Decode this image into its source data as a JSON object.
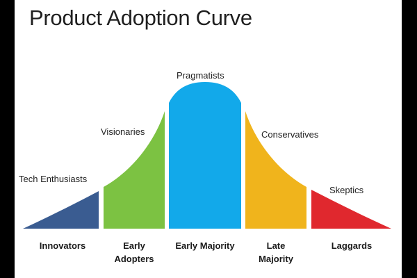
{
  "title": "Product Adoption Curve",
  "colors": {
    "innovators": "#3a5c91",
    "early_adopters": "#7cc242",
    "early_majority": "#12a9ea",
    "late_majority": "#f0b41c",
    "laggards": "#e0282e"
  },
  "personas": {
    "innovators": "Tech Enthusiasts",
    "early_adopters": "Visionaries",
    "early_majority": "Pragmatists",
    "late_majority": "Conservatives",
    "laggards": "Skeptics"
  },
  "stages": {
    "innovators": [
      "Innovators"
    ],
    "early_adopters": [
      "Early",
      "Adopters"
    ],
    "early_majority": [
      "Early Majority"
    ],
    "late_majority": [
      "Late",
      "Majority"
    ],
    "laggards": [
      "Laggards"
    ]
  }
}
